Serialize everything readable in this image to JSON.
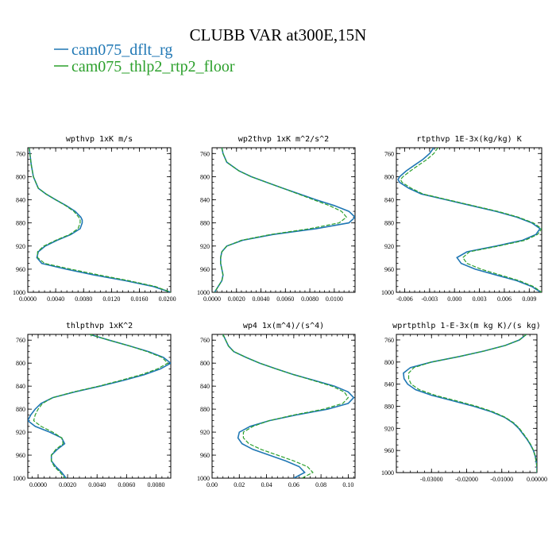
{
  "figure": {
    "title": "CLUBB VAR at300E,15N",
    "legend": [
      {
        "label": "cam075_dflt_rg",
        "color": "#1f77b4",
        "dash": "solid"
      },
      {
        "label": "cam075_thlp2_rtp2_floor",
        "color": "#2ca02c",
        "dash": "solid"
      }
    ]
  },
  "chart_data": [
    {
      "type": "line",
      "title": "wpthvp  1xK m/s",
      "xlim": [
        0,
        0.0205
      ],
      "ylim": [
        1000,
        750
      ],
      "y_inverted": true,
      "xticks": [
        "0.0000",
        "0.0040",
        "0.0080",
        "0.0120",
        "0.0160",
        "0.0200"
      ],
      "xtick_values": [
        0,
        0.004,
        0.008,
        0.012,
        0.016,
        0.02
      ],
      "yticks": [
        760,
        800,
        840,
        880,
        920,
        960,
        1000
      ],
      "y": [
        750,
        760,
        780,
        800,
        820,
        830,
        840,
        850,
        860,
        870,
        875,
        880,
        890,
        900,
        910,
        920,
        930,
        940,
        950,
        960,
        970,
        980,
        990,
        1000
      ],
      "series": [
        {
          "name": "cam075_dflt_rg",
          "x": [
            0.0002,
            0.0003,
            0.0005,
            0.0008,
            0.0015,
            0.0026,
            0.004,
            0.0055,
            0.0068,
            0.0076,
            0.0078,
            0.0078,
            0.0075,
            0.0062,
            0.0042,
            0.0025,
            0.0015,
            0.0013,
            0.002,
            0.0055,
            0.0095,
            0.014,
            0.018,
            0.0205
          ]
        },
        {
          "name": "cam075_thlp2_rtp2_floor",
          "x": [
            0.0002,
            0.0003,
            0.0005,
            0.0008,
            0.0015,
            0.0026,
            0.004,
            0.0054,
            0.0066,
            0.0073,
            0.0075,
            0.0075,
            0.0072,
            0.006,
            0.004,
            0.0023,
            0.0014,
            0.0014,
            0.0024,
            0.0062,
            0.0102,
            0.0145,
            0.0183,
            0.0205
          ]
        }
      ]
    },
    {
      "type": "line",
      "title": "wp2thvp  1xK m^2/s^2",
      "xlim": [
        0,
        0.0117
      ],
      "ylim": [
        1000,
        750
      ],
      "y_inverted": true,
      "xticks": [
        "0.0000",
        "0.0020",
        "0.0040",
        "0.0060",
        "0.0080",
        "0.0100"
      ],
      "xtick_values": [
        0,
        0.002,
        0.004,
        0.006,
        0.008,
        0.01
      ],
      "yticks": [
        760,
        800,
        840,
        880,
        920,
        960,
        1000
      ],
      "y": [
        750,
        760,
        775,
        790,
        800,
        810,
        820,
        840,
        850,
        860,
        870,
        880,
        890,
        900,
        910,
        920,
        930,
        940,
        950,
        960,
        970,
        980,
        990,
        1000
      ],
      "series": [
        {
          "name": "cam075_dflt_rg",
          "x": [
            0.0008,
            0.0009,
            0.0012,
            0.0022,
            0.0032,
            0.0045,
            0.0058,
            0.0085,
            0.01,
            0.0112,
            0.0117,
            0.0112,
            0.0085,
            0.005,
            0.0025,
            0.0012,
            0.0008,
            0.0007,
            0.0007,
            0.0008,
            0.0009,
            0.0008,
            0.0005,
            0.0002
          ]
        },
        {
          "name": "cam075_thlp2_rtp2_floor",
          "x": [
            0.0008,
            0.0009,
            0.0012,
            0.0022,
            0.0032,
            0.0045,
            0.0058,
            0.0083,
            0.0096,
            0.0106,
            0.011,
            0.0104,
            0.008,
            0.0048,
            0.0024,
            0.0012,
            0.0008,
            0.0007,
            0.0007,
            0.0008,
            0.0009,
            0.0008,
            0.0005,
            0.0002
          ]
        }
      ]
    },
    {
      "type": "line",
      "title": "rtpthvp  1E-3x(kg/kg) K",
      "xlim": [
        -0.007,
        0.0105
      ],
      "ylim": [
        1000,
        750
      ],
      "y_inverted": true,
      "xticks": [
        "-0.006",
        "-0.003",
        "0.000",
        "0.003",
        "0.006",
        "0.009"
      ],
      "xtick_values": [
        -0.006,
        -0.003,
        0,
        0.003,
        0.006,
        0.009
      ],
      "yticks": [
        760,
        800,
        840,
        880,
        920,
        960,
        1000
      ],
      "y": [
        750,
        760,
        770,
        780,
        790,
        800,
        805,
        810,
        820,
        830,
        840,
        850,
        860,
        870,
        880,
        890,
        900,
        910,
        920,
        930,
        940,
        950,
        960,
        970,
        980,
        990,
        1000
      ],
      "series": [
        {
          "name": "cam075_dflt_rg",
          "x": [
            -0.0025,
            -0.003,
            -0.0038,
            -0.0048,
            -0.0058,
            -0.0066,
            -0.0068,
            -0.0066,
            -0.0055,
            -0.004,
            -0.001,
            0.002,
            0.005,
            0.0075,
            0.0093,
            0.0103,
            0.0098,
            0.0082,
            0.005,
            0.0015,
            0.0003,
            0.0008,
            0.0025,
            0.005,
            0.0075,
            0.0093,
            0.0104
          ]
        },
        {
          "name": "cam075_thlp2_rtp2_floor",
          "x": [
            -0.002,
            -0.0025,
            -0.0033,
            -0.0043,
            -0.0053,
            -0.0062,
            -0.0065,
            -0.0063,
            -0.0052,
            -0.0038,
            -0.0008,
            0.0022,
            0.0052,
            0.0077,
            0.0095,
            0.0105,
            0.01,
            0.0085,
            0.0053,
            0.0018,
            0.001,
            0.0015,
            0.0032,
            0.0055,
            0.0078,
            0.0095,
            0.0105
          ]
        }
      ]
    },
    {
      "type": "line",
      "title": "thlpthvp  1xK^2",
      "xlim": [
        -0.0007,
        0.009
      ],
      "ylim": [
        1000,
        750
      ],
      "y_inverted": true,
      "xticks": [
        "0.0000",
        "0.0020",
        "0.0040",
        "0.0060",
        "0.0080"
      ],
      "xtick_values": [
        0,
        0.002,
        0.004,
        0.006,
        0.008
      ],
      "yticks": [
        760,
        800,
        840,
        880,
        920,
        960,
        1000
      ],
      "y": [
        750,
        760,
        770,
        780,
        790,
        800,
        810,
        820,
        830,
        840,
        850,
        860,
        870,
        880,
        890,
        900,
        910,
        920,
        930,
        940,
        950,
        960,
        970,
        980,
        990,
        1000
      ],
      "series": [
        {
          "name": "cam075_dflt_rg",
          "x": [
            0.0035,
            0.0048,
            0.0062,
            0.0075,
            0.0085,
            0.009,
            0.0083,
            0.0072,
            0.0058,
            0.0042,
            0.0025,
            0.001,
            0.0002,
            -0.0002,
            -0.0005,
            -0.0007,
            -0.0002,
            0.0008,
            0.0016,
            0.0018,
            0.0013,
            0.0009,
            0.0009,
            0.0012,
            0.0016,
            0.0019
          ]
        },
        {
          "name": "cam075_thlp2_rtp2_floor",
          "x": [
            0.0035,
            0.0048,
            0.0062,
            0.0074,
            0.0084,
            0.0088,
            0.0081,
            0.007,
            0.0056,
            0.0041,
            0.0024,
            0.001,
            0.0003,
            0.0,
            -0.0002,
            -0.0003,
            0.0002,
            0.001,
            0.0016,
            0.0017,
            0.0012,
            0.0009,
            0.0009,
            0.0011,
            0.0015,
            0.0018
          ]
        }
      ]
    },
    {
      "type": "line",
      "title": "wp4  1x(m^4)/(s^4)",
      "xlim": [
        0,
        0.105
      ],
      "ylim": [
        1000,
        750
      ],
      "y_inverted": true,
      "xticks": [
        "0.00",
        "0.02",
        "0.04",
        "0.06",
        "0.08",
        "0.10"
      ],
      "xtick_values": [
        0,
        0.02,
        0.04,
        0.06,
        0.08,
        0.1
      ],
      "yticks": [
        760,
        800,
        840,
        880,
        920,
        960,
        1000
      ],
      "y": [
        750,
        760,
        770,
        780,
        790,
        800,
        810,
        820,
        830,
        840,
        850,
        860,
        870,
        880,
        890,
        900,
        910,
        920,
        930,
        940,
        950,
        960,
        970,
        980,
        990,
        1000
      ],
      "series": [
        {
          "name": "cam075_dflt_rg",
          "x": [
            0.008,
            0.01,
            0.012,
            0.016,
            0.025,
            0.035,
            0.047,
            0.06,
            0.075,
            0.09,
            0.1,
            0.104,
            0.1,
            0.085,
            0.062,
            0.042,
            0.028,
            0.02,
            0.019,
            0.022,
            0.03,
            0.042,
            0.054,
            0.064,
            0.068,
            0.06
          ]
        },
        {
          "name": "cam075_thlp2_rtp2_floor",
          "x": [
            0.008,
            0.01,
            0.012,
            0.016,
            0.025,
            0.035,
            0.047,
            0.06,
            0.074,
            0.088,
            0.097,
            0.1,
            0.096,
            0.082,
            0.06,
            0.042,
            0.03,
            0.023,
            0.023,
            0.027,
            0.036,
            0.048,
            0.06,
            0.07,
            0.074,
            0.066
          ]
        }
      ]
    },
    {
      "type": "line",
      "title": "wprtpthlp  1-E-3x(m kg K)/(s kg)",
      "xlim": [
        -0.04,
        0.0
      ],
      "ylim": [
        1000,
        750
      ],
      "y_inverted": true,
      "xticks": [
        "-0.03000",
        "-0.02000",
        "-0.01000",
        "0.00000"
      ],
      "xtick_values": [
        -0.03,
        -0.02,
        -0.01,
        0
      ],
      "yticks": [
        760,
        800,
        840,
        880,
        920,
        960,
        1000
      ],
      "y": [
        750,
        760,
        770,
        780,
        790,
        800,
        810,
        820,
        830,
        840,
        850,
        860,
        870,
        880,
        890,
        900,
        910,
        920,
        930,
        940,
        950,
        960,
        970,
        980,
        990,
        1000
      ],
      "series": [
        {
          "name": "cam075_dflt_rg",
          "x": [
            -0.003,
            -0.005,
            -0.009,
            -0.015,
            -0.022,
            -0.03,
            -0.036,
            -0.038,
            -0.0378,
            -0.0368,
            -0.0345,
            -0.03,
            -0.024,
            -0.018,
            -0.013,
            -0.0092,
            -0.0068,
            -0.0052,
            -0.004,
            -0.0028,
            -0.0018,
            -0.001,
            -0.0005,
            -0.0002,
            0.0,
            0.0
          ]
        },
        {
          "name": "cam075_thlp2_rtp2_floor",
          "x": [
            -0.003,
            -0.005,
            -0.009,
            -0.015,
            -0.022,
            -0.03,
            -0.035,
            -0.0365,
            -0.0365,
            -0.0358,
            -0.0335,
            -0.029,
            -0.023,
            -0.0172,
            -0.0125,
            -0.009,
            -0.0066,
            -0.005,
            -0.0038,
            -0.0027,
            -0.0017,
            -0.001,
            -0.0005,
            -0.0002,
            0.0,
            0.0
          ]
        }
      ]
    }
  ]
}
